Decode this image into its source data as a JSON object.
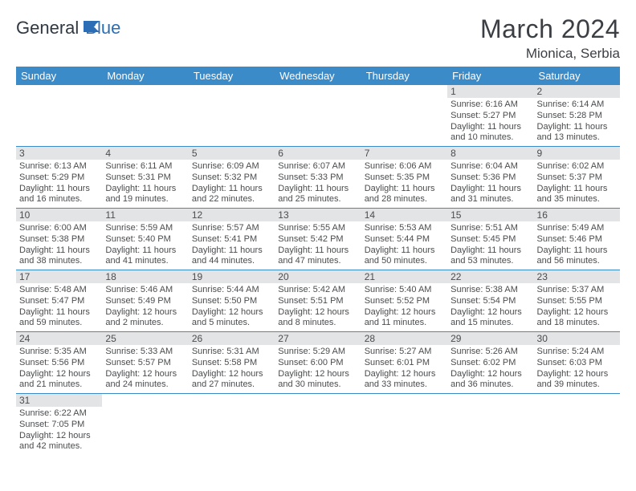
{
  "logo": {
    "text1": "General",
    "text2": "Blue"
  },
  "title": "March 2024",
  "location": "Mionica, Serbia",
  "day_headers": [
    "Sunday",
    "Monday",
    "Tuesday",
    "Wednesday",
    "Thursday",
    "Friday",
    "Saturday"
  ],
  "colors": {
    "header_bg": "#3b8bc9",
    "header_fg": "#ffffff",
    "daynum_bg": "#e3e4e5",
    "text": "#4a4c4e",
    "rule": "#3b8bc9"
  },
  "weeks": [
    [
      null,
      null,
      null,
      null,
      null,
      {
        "n": "1",
        "sr": "6:16 AM",
        "ss": "5:27 PM",
        "dl": "11 hours and 10 minutes."
      },
      {
        "n": "2",
        "sr": "6:14 AM",
        "ss": "5:28 PM",
        "dl": "11 hours and 13 minutes."
      }
    ],
    [
      {
        "n": "3",
        "sr": "6:13 AM",
        "ss": "5:29 PM",
        "dl": "11 hours and 16 minutes."
      },
      {
        "n": "4",
        "sr": "6:11 AM",
        "ss": "5:31 PM",
        "dl": "11 hours and 19 minutes."
      },
      {
        "n": "5",
        "sr": "6:09 AM",
        "ss": "5:32 PM",
        "dl": "11 hours and 22 minutes."
      },
      {
        "n": "6",
        "sr": "6:07 AM",
        "ss": "5:33 PM",
        "dl": "11 hours and 25 minutes."
      },
      {
        "n": "7",
        "sr": "6:06 AM",
        "ss": "5:35 PM",
        "dl": "11 hours and 28 minutes."
      },
      {
        "n": "8",
        "sr": "6:04 AM",
        "ss": "5:36 PM",
        "dl": "11 hours and 31 minutes."
      },
      {
        "n": "9",
        "sr": "6:02 AM",
        "ss": "5:37 PM",
        "dl": "11 hours and 35 minutes."
      }
    ],
    [
      {
        "n": "10",
        "sr": "6:00 AM",
        "ss": "5:38 PM",
        "dl": "11 hours and 38 minutes."
      },
      {
        "n": "11",
        "sr": "5:59 AM",
        "ss": "5:40 PM",
        "dl": "11 hours and 41 minutes."
      },
      {
        "n": "12",
        "sr": "5:57 AM",
        "ss": "5:41 PM",
        "dl": "11 hours and 44 minutes."
      },
      {
        "n": "13",
        "sr": "5:55 AM",
        "ss": "5:42 PM",
        "dl": "11 hours and 47 minutes."
      },
      {
        "n": "14",
        "sr": "5:53 AM",
        "ss": "5:44 PM",
        "dl": "11 hours and 50 minutes."
      },
      {
        "n": "15",
        "sr": "5:51 AM",
        "ss": "5:45 PM",
        "dl": "11 hours and 53 minutes."
      },
      {
        "n": "16",
        "sr": "5:49 AM",
        "ss": "5:46 PM",
        "dl": "11 hours and 56 minutes."
      }
    ],
    [
      {
        "n": "17",
        "sr": "5:48 AM",
        "ss": "5:47 PM",
        "dl": "11 hours and 59 minutes."
      },
      {
        "n": "18",
        "sr": "5:46 AM",
        "ss": "5:49 PM",
        "dl": "12 hours and 2 minutes."
      },
      {
        "n": "19",
        "sr": "5:44 AM",
        "ss": "5:50 PM",
        "dl": "12 hours and 5 minutes."
      },
      {
        "n": "20",
        "sr": "5:42 AM",
        "ss": "5:51 PM",
        "dl": "12 hours and 8 minutes."
      },
      {
        "n": "21",
        "sr": "5:40 AM",
        "ss": "5:52 PM",
        "dl": "12 hours and 11 minutes."
      },
      {
        "n": "22",
        "sr": "5:38 AM",
        "ss": "5:54 PM",
        "dl": "12 hours and 15 minutes."
      },
      {
        "n": "23",
        "sr": "5:37 AM",
        "ss": "5:55 PM",
        "dl": "12 hours and 18 minutes."
      }
    ],
    [
      {
        "n": "24",
        "sr": "5:35 AM",
        "ss": "5:56 PM",
        "dl": "12 hours and 21 minutes."
      },
      {
        "n": "25",
        "sr": "5:33 AM",
        "ss": "5:57 PM",
        "dl": "12 hours and 24 minutes."
      },
      {
        "n": "26",
        "sr": "5:31 AM",
        "ss": "5:58 PM",
        "dl": "12 hours and 27 minutes."
      },
      {
        "n": "27",
        "sr": "5:29 AM",
        "ss": "6:00 PM",
        "dl": "12 hours and 30 minutes."
      },
      {
        "n": "28",
        "sr": "5:27 AM",
        "ss": "6:01 PM",
        "dl": "12 hours and 33 minutes."
      },
      {
        "n": "29",
        "sr": "5:26 AM",
        "ss": "6:02 PM",
        "dl": "12 hours and 36 minutes."
      },
      {
        "n": "30",
        "sr": "5:24 AM",
        "ss": "6:03 PM",
        "dl": "12 hours and 39 minutes."
      }
    ],
    [
      {
        "n": "31",
        "sr": "6:22 AM",
        "ss": "7:05 PM",
        "dl": "12 hours and 42 minutes."
      },
      null,
      null,
      null,
      null,
      null,
      null
    ]
  ],
  "labels": {
    "sunrise": "Sunrise:",
    "sunset": "Sunset:",
    "daylight": "Daylight:"
  }
}
